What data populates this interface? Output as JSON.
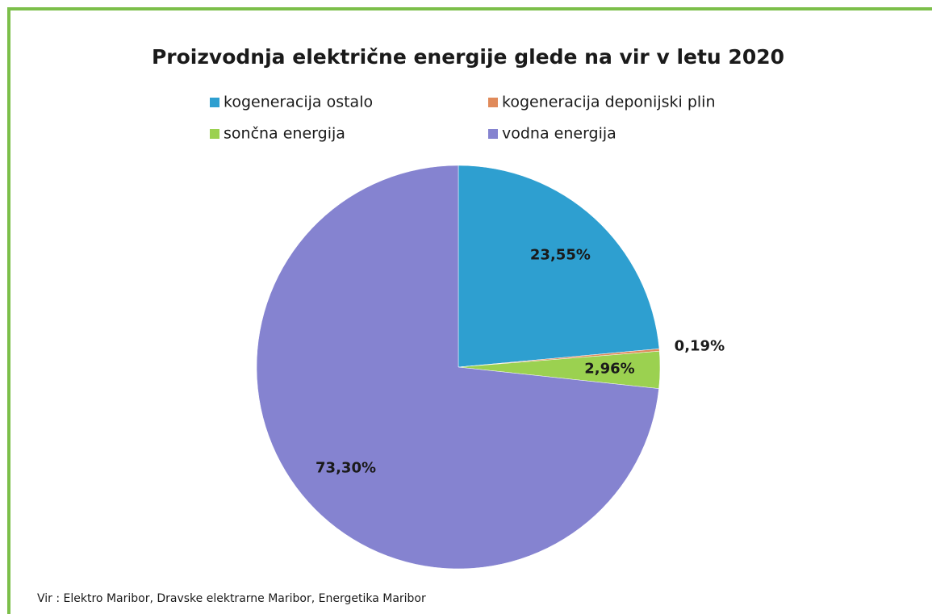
{
  "chart_data": {
    "type": "pie",
    "title": "Proizvodnja električne energije glede na vir v letu 2020",
    "categories": [
      "kogeneracija ostalo",
      "kogeneracija deponijski plin",
      "sončna energija",
      "vodna energija"
    ],
    "values": [
      23.55,
      0.19,
      2.96,
      73.3
    ],
    "value_labels": [
      "23,55%",
      "0,19%",
      "2,96%",
      "73,30%"
    ],
    "colors": [
      "#2e9fd0",
      "#e08a5a",
      "#9bd150",
      "#8583d0"
    ],
    "source": "Vir : Elektro Maribor, Dravske elektrarne Maribor, Energetika Maribor"
  }
}
